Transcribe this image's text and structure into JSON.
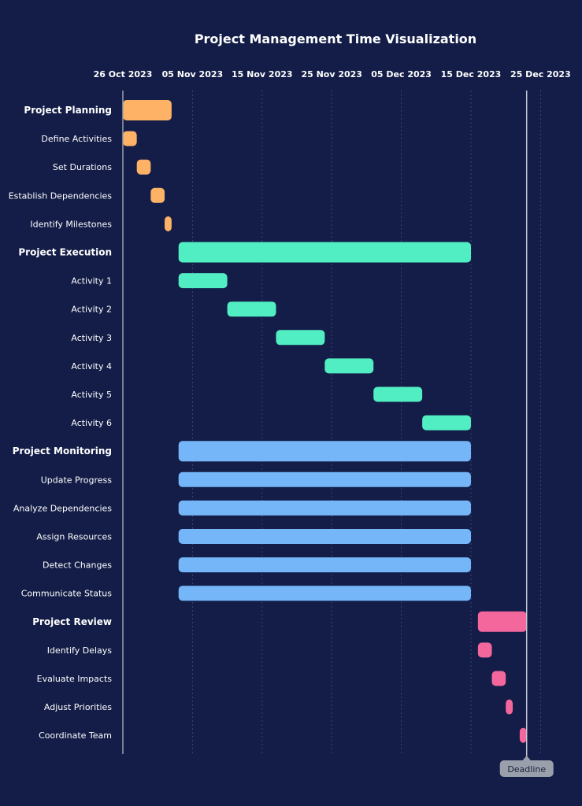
{
  "chart_data": {
    "type": "gantt",
    "title": "Project Management Time Visualization",
    "x_ticks": [
      "26 Oct 2023",
      "05 Nov 2023",
      "15 Nov 2023",
      "25 Nov 2023",
      "05 Dec 2023",
      "15 Dec 2023",
      "25 Dec 2023"
    ],
    "x_range": [
      "2023-10-26",
      "2023-12-28"
    ],
    "grid": "vertical dotted",
    "colors": {
      "background": "#131d47",
      "planning": "#fdb266",
      "execution": "#52eec3",
      "monitoring": "#74b6f7",
      "review": "#f3679d",
      "deadline_line": "#c4c8d4",
      "deadline_badge": "#9aa0ab"
    },
    "deadline": {
      "label": "Deadline",
      "date": "2023-12-23"
    },
    "tasks": [
      {
        "label": "Project Planning",
        "group": true,
        "color_key": "planning",
        "start": "2023-10-26",
        "end": "2023-11-02"
      },
      {
        "label": "Define Activities",
        "group": false,
        "color_key": "planning",
        "start": "2023-10-26",
        "end": "2023-10-28"
      },
      {
        "label": "Set Durations",
        "group": false,
        "color_key": "planning",
        "start": "2023-10-28",
        "end": "2023-10-30"
      },
      {
        "label": "Establish Dependencies",
        "group": false,
        "color_key": "planning",
        "start": "2023-10-30",
        "end": "2023-11-01"
      },
      {
        "label": "Identify Milestones",
        "group": false,
        "color_key": "planning",
        "start": "2023-11-01",
        "end": "2023-11-02"
      },
      {
        "label": "Project Execution",
        "group": true,
        "color_key": "execution",
        "start": "2023-11-03",
        "end": "2023-12-15"
      },
      {
        "label": "Activity 1",
        "group": false,
        "color_key": "execution",
        "start": "2023-11-03",
        "end": "2023-11-10"
      },
      {
        "label": "Activity 2",
        "group": false,
        "color_key": "execution",
        "start": "2023-11-10",
        "end": "2023-11-17"
      },
      {
        "label": "Activity 3",
        "group": false,
        "color_key": "execution",
        "start": "2023-11-17",
        "end": "2023-11-24"
      },
      {
        "label": "Activity 4",
        "group": false,
        "color_key": "execution",
        "start": "2023-11-24",
        "end": "2023-12-01"
      },
      {
        "label": "Activity 5",
        "group": false,
        "color_key": "execution",
        "start": "2023-12-01",
        "end": "2023-12-08"
      },
      {
        "label": "Activity 6",
        "group": false,
        "color_key": "execution",
        "start": "2023-12-08",
        "end": "2023-12-15"
      },
      {
        "label": "Project Monitoring",
        "group": true,
        "color_key": "monitoring",
        "start": "2023-11-03",
        "end": "2023-12-15"
      },
      {
        "label": "Update Progress",
        "group": false,
        "color_key": "monitoring",
        "start": "2023-11-03",
        "end": "2023-12-15"
      },
      {
        "label": "Analyze Dependencies",
        "group": false,
        "color_key": "monitoring",
        "start": "2023-11-03",
        "end": "2023-12-15"
      },
      {
        "label": "Assign Resources",
        "group": false,
        "color_key": "monitoring",
        "start": "2023-11-03",
        "end": "2023-12-15"
      },
      {
        "label": "Detect Changes",
        "group": false,
        "color_key": "monitoring",
        "start": "2023-11-03",
        "end": "2023-12-15"
      },
      {
        "label": "Communicate Status",
        "group": false,
        "color_key": "monitoring",
        "start": "2023-11-03",
        "end": "2023-12-15"
      },
      {
        "label": "Project Review",
        "group": true,
        "color_key": "review",
        "start": "2023-12-16",
        "end": "2023-12-23"
      },
      {
        "label": "Identify Delays",
        "group": false,
        "color_key": "review",
        "start": "2023-12-16",
        "end": "2023-12-18"
      },
      {
        "label": "Evaluate Impacts",
        "group": false,
        "color_key": "review",
        "start": "2023-12-18",
        "end": "2023-12-20"
      },
      {
        "label": "Adjust Priorities",
        "group": false,
        "color_key": "review",
        "start": "2023-12-20",
        "end": "2023-12-21"
      },
      {
        "label": "Coordinate Team",
        "group": false,
        "color_key": "review",
        "start": "2023-12-22",
        "end": "2023-12-23"
      }
    ]
  }
}
